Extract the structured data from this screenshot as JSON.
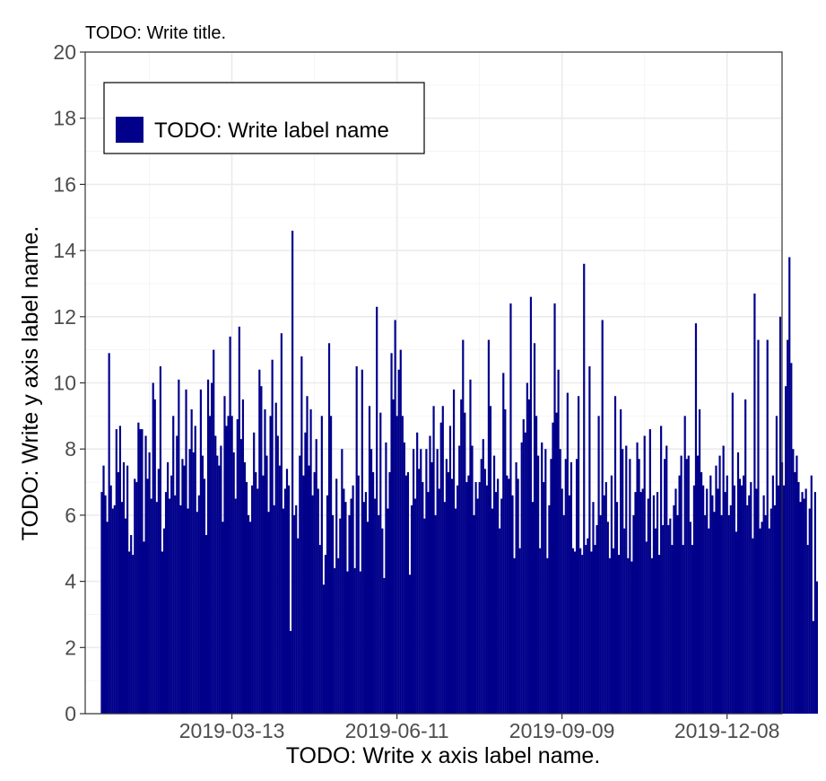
{
  "chart_data": {
    "type": "bar",
    "title": "TODO: Write title.",
    "xlabel": "TODO: Write x axis label name.",
    "ylabel": "TODO: Write y axis label name.",
    "ylim": [
      0,
      20
    ],
    "xlim": [
      "2018-12-23",
      "2020-01-07"
    ],
    "grid": true,
    "legend_position": "top-left",
    "bar_color": "#00008b",
    "x_ticks": [
      "2019-03-13",
      "2019-06-11",
      "2019-09-09",
      "2019-12-08"
    ],
    "y_ticks": [
      0,
      2,
      4,
      6,
      8,
      10,
      12,
      14,
      16,
      18,
      20
    ],
    "series": [
      {
        "name": "TODO: Write label name",
        "x_start": "2019-01-01",
        "values": [
          6.7,
          7.5,
          6.6,
          5.8,
          10.9,
          6.9,
          6.2,
          6.3,
          8.6,
          7.3,
          8.7,
          6.4,
          7.6,
          5.9,
          7.5,
          4.9,
          5.4,
          4.8,
          7.1,
          7.0,
          8.8,
          8.6,
          8.6,
          5.2,
          8.4,
          7.1,
          7.9,
          6.5,
          10.0,
          9.5,
          6.4,
          7.4,
          10.5,
          4.9,
          5.6,
          6.7,
          7.6,
          6.5,
          7.2,
          9.0,
          6.6,
          8.4,
          10.1,
          6.3,
          7.7,
          7.5,
          9.8,
          6.2,
          8.0,
          9.2,
          7.9,
          8.7,
          6.1,
          6.6,
          9.8,
          7.8,
          7.1,
          5.4,
          10.1,
          9.0,
          10.0,
          11.0,
          8.4,
          7.8,
          7.5,
          8.1,
          5.8,
          9.6,
          8.7,
          9.0,
          11.4,
          9.0,
          7.9,
          6.5,
          8.9,
          11.7,
          8.3,
          9.5,
          7.6,
          7.0,
          6.0,
          5.8,
          6.9,
          8.5,
          7.3,
          6.8,
          10.4,
          9.9,
          7.2,
          9.2,
          7.8,
          6.1,
          9.0,
          10.7,
          6.3,
          9.4,
          8.4,
          7.5,
          11.5,
          6.2,
          6.8,
          7.4,
          6.9,
          2.5,
          14.6,
          6.0,
          6.3,
          5.3,
          7.8,
          10.8,
          7.2,
          8.5,
          9.6,
          7.5,
          9.2,
          6.6,
          7.3,
          8.3,
          6.8,
          5.1,
          9.0,
          3.9,
          4.8,
          6.6,
          11.2,
          9.0,
          6.0,
          4.4,
          7.1,
          4.7,
          5.9,
          8.0,
          6.8,
          6.4,
          4.3,
          6.0,
          6.5,
          6.9,
          4.4,
          10.5,
          7.2,
          4.3,
          10.4,
          6.4,
          6.7,
          5.8,
          9.3,
          8.0,
          7.3,
          6.5,
          12.3,
          6.0,
          9.1,
          5.6,
          4.1,
          8.2,
          6.2,
          7.3,
          10.9,
          9.5,
          11.9,
          9.0,
          10.4,
          11.0,
          9.0,
          8.2,
          7.2,
          7.3,
          4.2,
          6.3,
          8.0,
          6.5,
          8.5,
          7.4,
          8.0,
          7.0,
          5.9,
          8.0,
          6.7,
          8.4,
          7.6,
          9.3,
          6.0,
          8.0,
          6.8,
          8.8,
          9.3,
          6.4,
          7.7,
          7.3,
          8.7,
          7.1,
          9.8,
          6.2,
          6.9,
          8.1,
          9.5,
          11.3,
          9.1,
          7.0,
          7.2,
          10.1,
          8.1,
          6.0,
          7.0,
          6.5,
          7.0,
          7.7,
          8.3,
          7.4,
          6.9,
          11.3,
          9.3,
          6.2,
          7.8,
          6.7,
          7.1,
          5.6,
          6.5,
          10.3,
          9.2,
          7.2,
          7.1,
          12.4,
          6.6,
          4.7,
          7.6,
          7.1,
          5.0,
          8.2,
          8.9,
          8.5,
          10.0,
          9.5,
          12.6,
          6.4,
          11.2,
          9.0,
          7.8,
          5.0,
          8.2,
          7.0,
          8.0,
          4.7,
          6.3,
          7.7,
          8.8,
          12.4,
          9.1,
          10.4,
          8.0,
          6.8,
          6.0,
          7.7,
          9.7,
          6.6,
          7.6,
          5.0,
          4.9,
          7.7,
          9.6,
          5.0,
          4.8,
          13.6,
          5.1,
          5.3,
          10.5,
          4.9,
          6.4,
          5.1,
          5.7,
          9.0,
          6.0,
          11.9,
          6.6,
          7.0,
          5.8,
          4.7,
          7.2,
          5.0,
          9.6,
          6.4,
          4.8,
          9.2,
          8.0,
          5.6,
          8.1,
          4.7,
          7.7,
          4.6,
          6.0,
          6.7,
          8.2,
          7.7,
          6.7,
          6.8,
          8.4,
          5.2,
          6.5,
          8.6,
          4.7,
          6.6,
          5.6,
          6.7,
          4.8,
          8.7,
          5.7,
          7.7,
          8.1,
          5.7,
          5.9,
          5.1,
          6.3,
          6.8,
          6.0,
          7.2,
          7.8,
          5.1,
          9.0,
          7.7,
          7.8,
          5.8,
          5.1,
          6.9,
          11.8,
          7.8,
          9.2,
          7.3,
          6.9,
          6.0,
          6.8,
          5.6,
          7.2,
          6.6,
          6.1,
          7.5,
          6.8,
          7.8,
          6.0,
          8.1,
          6.7,
          7.2,
          6.0,
          6.3,
          9.7,
          6.9,
          5.5,
          7.9,
          7.1,
          6.9,
          7.2,
          9.5,
          6.3,
          6.6,
          7.0,
          5.3,
          12.7,
          6.8,
          11.3,
          5.6,
          5.8,
          6.6,
          6.0,
          11.3,
          5.6,
          6.2,
          7.2,
          6.3,
          9.0,
          6.9,
          12.0,
          7.6,
          6.9,
          9.9,
          11.3,
          13.8,
          10.6,
          8.0,
          7.3,
          7.8,
          7.0,
          6.4,
          6.7,
          6.5,
          6.8,
          5.1,
          6.2,
          7.2,
          2.8,
          6.7,
          4.0
        ]
      }
    ]
  }
}
